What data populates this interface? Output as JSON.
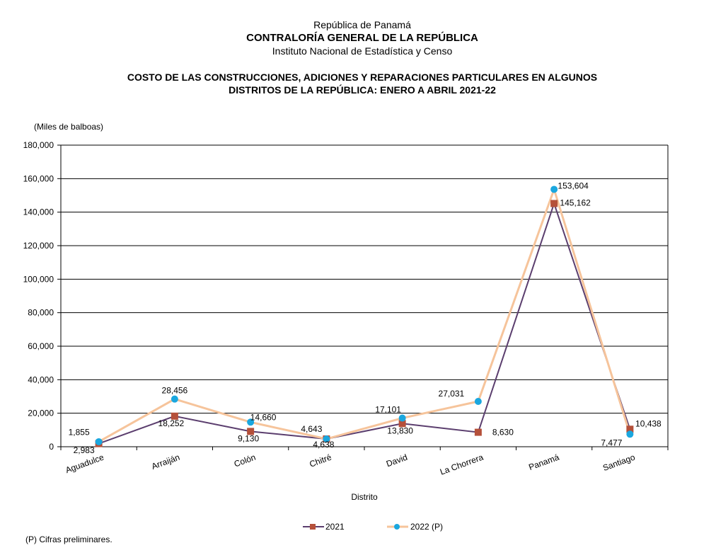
{
  "header": {
    "country": "República de Panamá",
    "institution": "CONTRALORÍA GENERAL DE LA REPÚBLICA",
    "institute": "Instituto  Nacional de Estadística y Censo"
  },
  "footnote": "(P) Cifras  preliminares.",
  "colors": {
    "series_2021": "#5b3e6e",
    "series_2021_marker": "#b5503a",
    "series_2022": "#f6c49b",
    "series_2022_marker": "#1aa7df"
  },
  "chart_data": {
    "type": "line",
    "title_line1": "COSTO DE LAS CONSTRUCCIONES, ADICIONES Y REPARACIONES PARTICULARES EN ALGUNOS",
    "title_line2": "DISTRITOS DE LA REPÚBLICA: ENERO A ABRIL 2021-22",
    "ylabel": "(Miles de balboas)",
    "xlabel": "Distrito",
    "ylim": [
      0,
      180000
    ],
    "yticks": [
      "0",
      "20,000",
      "40,000",
      "60,000",
      "80,000",
      "100,000",
      "120,000",
      "140,000",
      "160,000",
      "180,000"
    ],
    "grid": true,
    "legend_position": "bottom",
    "categories": [
      "Aguadulce",
      "Arraiján",
      "Colón",
      "Chitré",
      "David",
      "La Chorrera",
      "Panamá",
      "Santiago"
    ],
    "series": [
      {
        "name": "2021",
        "values": [
          1855,
          18252,
          9130,
          4638,
          13830,
          8630,
          145162,
          10438
        ],
        "labels": [
          "1,855",
          "18,252",
          "9,130",
          "4,638",
          "13,830",
          "8,630",
          "145,162",
          "10,438"
        ]
      },
      {
        "name": "2022 (P)",
        "values": [
          2983,
          28456,
          14660,
          4643,
          17101,
          27031,
          153604,
          7477
        ],
        "labels": [
          "2,983",
          "28,456",
          "14,660",
          "4,643",
          "17,101",
          "27,031",
          "153,604",
          "7,477"
        ]
      }
    ]
  }
}
